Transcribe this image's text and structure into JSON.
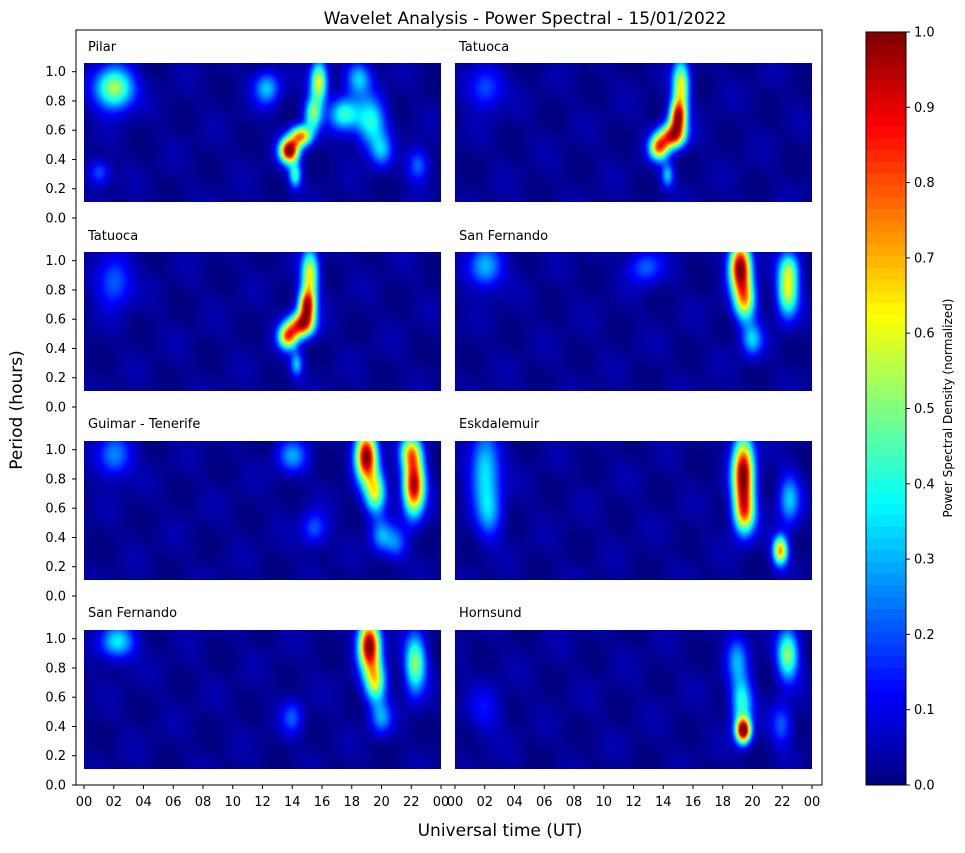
{
  "chart_data": {
    "type": "heatmap",
    "title": "Wavelet Analysis - Power Spectral - 15/01/2022",
    "xlabel": "Universal time (UT)",
    "ylabel": "Period (hours)",
    "ylim": [
      0.0,
      1.0
    ],
    "xlim": [
      0,
      24
    ],
    "y_ticks": [
      "0.0",
      "0.2",
      "0.4",
      "0.6",
      "0.8",
      "1.0"
    ],
    "x_ticks_left": [
      "00",
      "02",
      "04",
      "06",
      "08",
      "10",
      "12",
      "14",
      "16",
      "18",
      "20",
      "22",
      "00"
    ],
    "x_ticks_right": [
      "00",
      "02",
      "04",
      "06",
      "08",
      "10",
      "12",
      "14",
      "16",
      "18",
      "20",
      "22",
      "00"
    ],
    "colorbar": {
      "label": "Power Spectral Density (normalized)",
      "range": [
        0.0,
        1.0
      ],
      "ticks": [
        "0.0",
        "0.1",
        "0.2",
        "0.3",
        "0.4",
        "0.5",
        "0.6",
        "0.7",
        "0.8",
        "0.9",
        "1.0"
      ],
      "colormap": "jet"
    },
    "panels": [
      {
        "name": "Pilar",
        "blobs": [
          {
            "t": 2.0,
            "p": 0.88,
            "st": 0.9,
            "sp": 0.1,
            "a": 0.55
          },
          {
            "t": 12.3,
            "p": 0.88,
            "st": 0.6,
            "sp": 0.08,
            "a": 0.3
          },
          {
            "t": 13.8,
            "p": 0.45,
            "st": 0.45,
            "sp": 0.06,
            "a": 1.0
          },
          {
            "t": 14.6,
            "p": 0.55,
            "st": 0.5,
            "sp": 0.05,
            "a": 0.7
          },
          {
            "t": 15.4,
            "p": 0.7,
            "st": 0.4,
            "sp": 0.08,
            "a": 0.45
          },
          {
            "t": 15.8,
            "p": 0.92,
            "st": 0.4,
            "sp": 0.1,
            "a": 0.6
          },
          {
            "t": 17.5,
            "p": 0.7,
            "st": 0.7,
            "sp": 0.08,
            "a": 0.4
          },
          {
            "t": 19.3,
            "p": 0.65,
            "st": 0.7,
            "sp": 0.12,
            "a": 0.38
          },
          {
            "t": 18.5,
            "p": 0.95,
            "st": 0.6,
            "sp": 0.08,
            "a": 0.3
          },
          {
            "t": 14.2,
            "p": 0.28,
            "st": 0.3,
            "sp": 0.06,
            "a": 0.4
          },
          {
            "t": 20.0,
            "p": 0.45,
            "st": 0.5,
            "sp": 0.08,
            "a": 0.25
          },
          {
            "t": 22.5,
            "p": 0.35,
            "st": 0.5,
            "sp": 0.08,
            "a": 0.22
          },
          {
            "t": 1.0,
            "p": 0.3,
            "st": 0.5,
            "sp": 0.06,
            "a": 0.2
          }
        ]
      },
      {
        "name": "Tatuoca",
        "blobs": [
          {
            "t": 2.0,
            "p": 0.88,
            "st": 0.8,
            "sp": 0.1,
            "a": 0.2
          },
          {
            "t": 13.7,
            "p": 0.47,
            "st": 0.45,
            "sp": 0.06,
            "a": 0.7
          },
          {
            "t": 14.6,
            "p": 0.55,
            "st": 0.6,
            "sp": 0.06,
            "a": 0.8
          },
          {
            "t": 15.0,
            "p": 0.68,
            "st": 0.4,
            "sp": 0.08,
            "a": 0.85
          },
          {
            "t": 15.2,
            "p": 0.9,
            "st": 0.4,
            "sp": 0.12,
            "a": 0.6
          },
          {
            "t": 14.3,
            "p": 0.28,
            "st": 0.3,
            "sp": 0.06,
            "a": 0.3
          }
        ]
      },
      {
        "name": "Tatuoca",
        "blobs": [
          {
            "t": 2.0,
            "p": 0.85,
            "st": 0.8,
            "sp": 0.12,
            "a": 0.22
          },
          {
            "t": 13.7,
            "p": 0.47,
            "st": 0.45,
            "sp": 0.06,
            "a": 0.7
          },
          {
            "t": 14.6,
            "p": 0.55,
            "st": 0.6,
            "sp": 0.06,
            "a": 0.8
          },
          {
            "t": 15.0,
            "p": 0.68,
            "st": 0.4,
            "sp": 0.08,
            "a": 0.85
          },
          {
            "t": 15.2,
            "p": 0.9,
            "st": 0.4,
            "sp": 0.12,
            "a": 0.6
          },
          {
            "t": 14.3,
            "p": 0.28,
            "st": 0.3,
            "sp": 0.06,
            "a": 0.3
          }
        ]
      },
      {
        "name": "San Fernando",
        "blobs": [
          {
            "t": 2.0,
            "p": 0.95,
            "st": 0.8,
            "sp": 0.1,
            "a": 0.3
          },
          {
            "t": 12.8,
            "p": 0.95,
            "st": 0.8,
            "sp": 0.08,
            "a": 0.2
          },
          {
            "t": 19.2,
            "p": 0.95,
            "st": 0.5,
            "sp": 0.12,
            "a": 1.0
          },
          {
            "t": 19.5,
            "p": 0.72,
            "st": 0.5,
            "sp": 0.1,
            "a": 0.6
          },
          {
            "t": 20.0,
            "p": 0.45,
            "st": 0.5,
            "sp": 0.08,
            "a": 0.3
          },
          {
            "t": 22.4,
            "p": 0.78,
            "st": 0.5,
            "sp": 0.12,
            "a": 0.55
          },
          {
            "t": 22.5,
            "p": 0.95,
            "st": 0.5,
            "sp": 0.08,
            "a": 0.3
          }
        ]
      },
      {
        "name": "Guimar - Tenerife",
        "blobs": [
          {
            "t": 2.0,
            "p": 0.95,
            "st": 0.8,
            "sp": 0.1,
            "a": 0.25
          },
          {
            "t": 14.0,
            "p": 0.95,
            "st": 0.7,
            "sp": 0.08,
            "a": 0.25
          },
          {
            "t": 19.0,
            "p": 0.95,
            "st": 0.5,
            "sp": 0.12,
            "a": 1.0
          },
          {
            "t": 19.6,
            "p": 0.7,
            "st": 0.5,
            "sp": 0.1,
            "a": 0.55
          },
          {
            "t": 20.0,
            "p": 0.4,
            "st": 0.5,
            "sp": 0.08,
            "a": 0.25
          },
          {
            "t": 22.2,
            "p": 0.75,
            "st": 0.5,
            "sp": 0.14,
            "a": 0.95
          },
          {
            "t": 22.0,
            "p": 0.98,
            "st": 0.5,
            "sp": 0.08,
            "a": 0.5
          },
          {
            "t": 21.0,
            "p": 0.35,
            "st": 0.5,
            "sp": 0.08,
            "a": 0.2
          },
          {
            "t": 15.5,
            "p": 0.45,
            "st": 0.6,
            "sp": 0.08,
            "a": 0.2
          }
        ]
      },
      {
        "name": "Eskdalemuir",
        "blobs": [
          {
            "t": 2.0,
            "p": 0.85,
            "st": 0.7,
            "sp": 0.18,
            "a": 0.35
          },
          {
            "t": 2.3,
            "p": 0.55,
            "st": 0.6,
            "sp": 0.12,
            "a": 0.22
          },
          {
            "t": 19.4,
            "p": 0.82,
            "st": 0.5,
            "sp": 0.18,
            "a": 1.0
          },
          {
            "t": 19.5,
            "p": 0.55,
            "st": 0.5,
            "sp": 0.1,
            "a": 0.5
          },
          {
            "t": 21.9,
            "p": 0.3,
            "st": 0.35,
            "sp": 0.07,
            "a": 0.7
          },
          {
            "t": 22.5,
            "p": 0.65,
            "st": 0.5,
            "sp": 0.12,
            "a": 0.3
          }
        ]
      },
      {
        "name": "San Fernando",
        "blobs": [
          {
            "t": 2.2,
            "p": 0.97,
            "st": 0.8,
            "sp": 0.08,
            "a": 0.35
          },
          {
            "t": 19.2,
            "p": 0.95,
            "st": 0.5,
            "sp": 0.12,
            "a": 1.0
          },
          {
            "t": 19.6,
            "p": 0.7,
            "st": 0.5,
            "sp": 0.1,
            "a": 0.55
          },
          {
            "t": 20.0,
            "p": 0.45,
            "st": 0.5,
            "sp": 0.08,
            "a": 0.25
          },
          {
            "t": 22.3,
            "p": 0.82,
            "st": 0.5,
            "sp": 0.14,
            "a": 0.5
          },
          {
            "t": 14.0,
            "p": 0.45,
            "st": 0.5,
            "sp": 0.08,
            "a": 0.18
          }
        ]
      },
      {
        "name": "Hornsund",
        "blobs": [
          {
            "t": 19.4,
            "p": 0.36,
            "st": 0.35,
            "sp": 0.06,
            "a": 1.0
          },
          {
            "t": 19.3,
            "p": 0.55,
            "st": 0.5,
            "sp": 0.12,
            "a": 0.4
          },
          {
            "t": 19.0,
            "p": 0.85,
            "st": 0.5,
            "sp": 0.12,
            "a": 0.25
          },
          {
            "t": 22.4,
            "p": 0.88,
            "st": 0.5,
            "sp": 0.12,
            "a": 0.5
          },
          {
            "t": 22.0,
            "p": 0.4,
            "st": 0.5,
            "sp": 0.1,
            "a": 0.2
          },
          {
            "t": 2.0,
            "p": 0.5,
            "st": 0.8,
            "sp": 0.12,
            "a": 0.1
          }
        ]
      }
    ]
  }
}
